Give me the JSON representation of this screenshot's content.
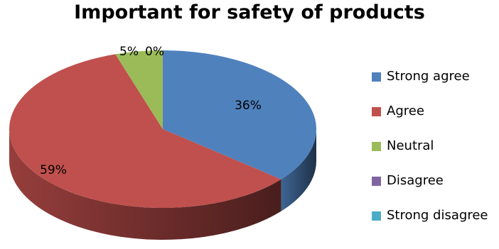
{
  "chart_data": {
    "type": "pie",
    "title": "Important for safety of products",
    "slices": [
      {
        "name": "Strong agree",
        "value": 36,
        "label": "36%",
        "color": "#4F81BD"
      },
      {
        "name": "Agree",
        "value": 59,
        "label": "59%",
        "color": "#C0504D"
      },
      {
        "name": "Neutral",
        "value": 5,
        "label": "5%",
        "color": "#9BBB59"
      },
      {
        "name": "Disagree",
        "value": 0,
        "label": "0%",
        "color": "#8064A2"
      },
      {
        "name": "Strong disagree",
        "value": 0,
        "label": "",
        "color": "#4BACC6"
      }
    ],
    "legend_position": "right",
    "style": "3d"
  }
}
